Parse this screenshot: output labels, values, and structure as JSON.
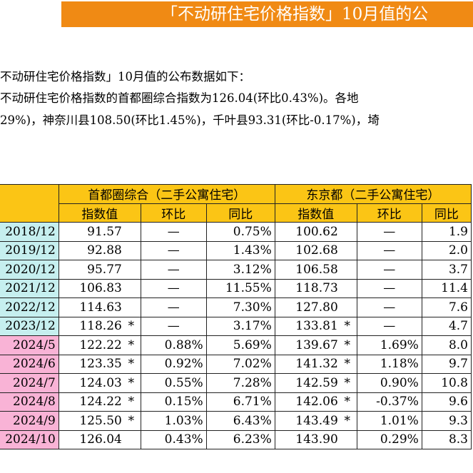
{
  "banner": {
    "text": "「不动研住宅价格指数」10月值的公"
  },
  "paragraphs": {
    "line1": "不动研住宅价格指数」10月值的公布数据如下：",
    "line2": "不动研住宅价格指数的首都圈综合指数为126.04(环比0.43%)。各地",
    "line3": "29%)，神奈川县108.50(环比1.45%)，千叶县93.31(环比-0.17%)，埼"
  },
  "table": {
    "group_headers": [
      "首都圈综合（二手公寓住宅）",
      "东京都（二手公寓住宅）"
    ],
    "sub_headers": [
      "指数值",
      "环比",
      "同比",
      "指数值",
      "环比",
      "同比"
    ],
    "rows": [
      {
        "period": "2018/12",
        "type": "year",
        "a_idx": "91.57",
        "a_star": "",
        "a_mom": "—",
        "a_yoy": "0.75%",
        "b_idx": "100.62",
        "b_star": "",
        "b_mom": "—",
        "b_yoy": "1.9"
      },
      {
        "period": "2019/12",
        "type": "year",
        "a_idx": "92.88",
        "a_star": "",
        "a_mom": "—",
        "a_yoy": "1.43%",
        "b_idx": "102.68",
        "b_star": "",
        "b_mom": "—",
        "b_yoy": "2.0"
      },
      {
        "period": "2020/12",
        "type": "year",
        "a_idx": "95.77",
        "a_star": "",
        "a_mom": "—",
        "a_yoy": "3.12%",
        "b_idx": "106.58",
        "b_star": "",
        "b_mom": "—",
        "b_yoy": "3.7"
      },
      {
        "period": "2021/12",
        "type": "year",
        "a_idx": "106.83",
        "a_star": "",
        "a_mom": "—",
        "a_yoy": "11.55%",
        "b_idx": "118.73",
        "b_star": "",
        "b_mom": "—",
        "b_yoy": "11.4"
      },
      {
        "period": "2022/12",
        "type": "year",
        "a_idx": "114.63",
        "a_star": "",
        "a_mom": "—",
        "a_yoy": "7.30%",
        "b_idx": "127.80",
        "b_star": "",
        "b_mom": "—",
        "b_yoy": "7.6"
      },
      {
        "period": "2023/12",
        "type": "year",
        "a_idx": "118.26",
        "a_star": "*",
        "a_mom": "—",
        "a_yoy": "3.17%",
        "b_idx": "133.81",
        "b_star": "*",
        "b_mom": "—",
        "b_yoy": "4.7"
      },
      {
        "period": "2024/5",
        "type": "month",
        "a_idx": "122.22",
        "a_star": "*",
        "a_mom": "0.88%",
        "a_yoy": "5.69%",
        "b_idx": "139.67",
        "b_star": "*",
        "b_mom": "1.69%",
        "b_yoy": "8.0"
      },
      {
        "period": "2024/6",
        "type": "month",
        "a_idx": "123.35",
        "a_star": "*",
        "a_mom": "0.92%",
        "a_yoy": "7.02%",
        "b_idx": "141.32",
        "b_star": "*",
        "b_mom": "1.18%",
        "b_yoy": "9.7"
      },
      {
        "period": "2024/7",
        "type": "month",
        "a_idx": "124.03",
        "a_star": "*",
        "a_mom": "0.55%",
        "a_yoy": "7.28%",
        "b_idx": "142.59",
        "b_star": "*",
        "b_mom": "0.90%",
        "b_yoy": "10.8"
      },
      {
        "period": "2024/8",
        "type": "month",
        "a_idx": "124.22",
        "a_star": "*",
        "a_mom": "0.15%",
        "a_yoy": "6.71%",
        "b_idx": "142.06",
        "b_star": "*",
        "b_mom": "-0.37%",
        "b_yoy": "9.6"
      },
      {
        "period": "2024/9",
        "type": "month",
        "a_idx": "125.50",
        "a_star": "*",
        "a_mom": "1.03%",
        "a_yoy": "6.43%",
        "b_idx": "143.49",
        "b_star": "*",
        "b_mom": "1.01%",
        "b_yoy": "9.3"
      },
      {
        "period": "2024/10",
        "type": "month",
        "a_idx": "126.04",
        "a_star": "",
        "a_mom": "0.43%",
        "a_yoy": "6.23%",
        "b_idx": "143.90",
        "b_star": "",
        "b_mom": "0.29%",
        "b_yoy": "8.3"
      }
    ]
  }
}
